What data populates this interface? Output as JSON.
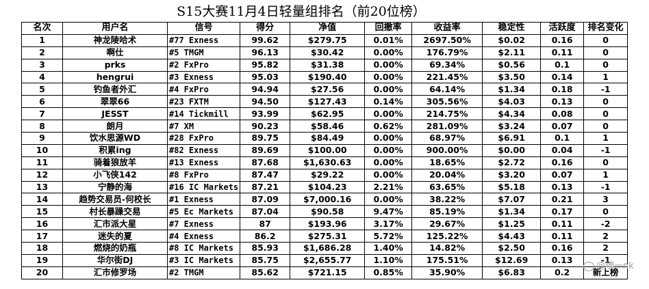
{
  "title": "S15大赛11月4日轻量组排名（前20位榜）",
  "headers": [
    "名次",
    "用户名",
    "信号",
    "得分",
    "净值",
    "回撤率",
    "收益率",
    "稳定性",
    "活跃度",
    "排名变化"
  ],
  "rows": [
    [
      "1",
      "神龙陵哈术",
      "#77 Exness",
      "99.62",
      "$279.75",
      "0.01%",
      "2697.50%",
      "$0.02",
      "0.16",
      "0"
    ],
    [
      "2",
      "啊仕",
      "#5 TMGM",
      "96.13",
      "$30.42",
      "0.00%",
      "176.79%",
      "$2.11",
      "0.11",
      "0"
    ],
    [
      "3",
      "prks",
      "#2 FxPro",
      "95.82",
      "$31.38",
      "0.00%",
      "69.34%",
      "$0.56",
      "0.1",
      "0"
    ],
    [
      "4",
      "hengrui",
      "#3 Exness",
      "95.03",
      "$190.40",
      "0.00%",
      "221.45%",
      "$3.50",
      "0.14",
      "1"
    ],
    [
      "5",
      "钓鱼者外汇",
      "#4 FxPro",
      "94.94",
      "$27.56",
      "0.00%",
      "64.14%",
      "$1.34",
      "0.18",
      "-1"
    ],
    [
      "6",
      "翠翠66",
      "#23 FXTM",
      "94.50",
      "$127.43",
      "0.14%",
      "305.56%",
      "$4.03",
      "0.13",
      "0"
    ],
    [
      "7",
      "JESST",
      "#14 Tickmill",
      "93.99",
      "$62.95",
      "0.00%",
      "214.75%",
      "$4.34",
      "0.08",
      "0"
    ],
    [
      "8",
      "朗月",
      "#7 XM",
      "90.23",
      "$58.46",
      "0.62%",
      "281.09%",
      "$3.24",
      "0.07",
      "0"
    ],
    [
      "9",
      "饮水思源WD",
      "#28 FxPro",
      "89.75",
      "$84.49",
      "0.00%",
      "68.97%",
      "$6.91",
      "0.1",
      "1"
    ],
    [
      "10",
      "积累ing",
      "#82 Exness",
      "89.69",
      "$100.00",
      "0.00%",
      "900.00%",
      "$0.00",
      "0.04",
      "-1"
    ],
    [
      "11",
      "骑着狼放羊",
      "#13 Exness",
      "87.68",
      "$1,630.63",
      "0.00%",
      "18.65%",
      "$2.72",
      "0.16",
      "0"
    ],
    [
      "12",
      "小飞侠142",
      "#8 FxPro",
      "87.47",
      "$29.22",
      "0.00%",
      "20.04%",
      "$3.20",
      "0.07",
      "1"
    ],
    [
      "13",
      "宁静的海",
      "#16 IC Markets",
      "87.21",
      "$104.23",
      "2.21%",
      "63.65%",
      "$5.18",
      "0.13",
      "-1"
    ],
    [
      "14",
      "趋势交易员-何校长",
      "#1 Exness",
      "87.09",
      "$7,000.16",
      "0.00%",
      "38.22%",
      "$7.07",
      "0.21",
      "3"
    ],
    [
      "15",
      "村长暴躁交易",
      "#5 Ec Markets",
      "87.04",
      "$90.58",
      "9.47%",
      "85.19%",
      "$1.34",
      "0.17",
      "0"
    ],
    [
      "16",
      "汇市派大星",
      "#7 Exness",
      "87",
      "$193.96",
      "3.17%",
      "29.67%",
      "$1.25",
      "0.11",
      "-2"
    ],
    [
      "17",
      "迷失的夏",
      "#4 Exness",
      "86.2",
      "$275.31",
      "5.72%",
      "125.22%",
      "$4.43",
      "0.11",
      "2"
    ],
    [
      "18",
      "燃烧的奶瓶",
      "#8 IC Markets",
      "85.93",
      "$1,686.28",
      "1.40%",
      "14.82%",
      "$2.50",
      "0.16",
      "2"
    ],
    [
      "19",
      "华尔街DJ",
      "#3 IC Markets",
      "85.75",
      "$2,655.77",
      "1.10%",
      "175.51%",
      "$12.69",
      "0.13",
      "-1"
    ],
    [
      "20",
      "汇市修罗场",
      "#2 TMGM",
      "85.62",
      "$721.15",
      "0.85%",
      "35.90%",
      "$6.83",
      "0.2",
      "新上榜"
    ]
  ],
  "watermark": "@噢一nk"
}
